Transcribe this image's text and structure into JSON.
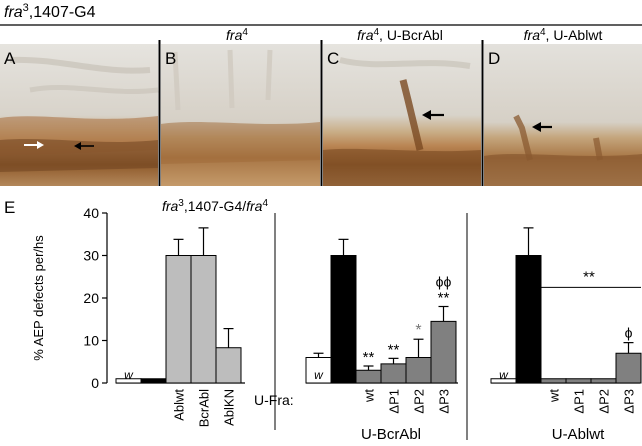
{
  "header": {
    "genotype_base": "fra",
    "genotype_sup": "3",
    "genotype_rest": ",1407-G4"
  },
  "panels": [
    {
      "letter": "A",
      "title_base": "",
      "title_sup": "",
      "title_rest": ""
    },
    {
      "letter": "B",
      "title_base": "fra",
      "title_sup": "4",
      "title_rest": ""
    },
    {
      "letter": "C",
      "title_base": "fra",
      "title_sup": "4",
      "title_rest": ", U-BcrAbl"
    },
    {
      "letter": "D",
      "title_base": "fra",
      "title_sup": "4",
      "title_rest": ", U-Ablwt"
    }
  ],
  "chart_data": {
    "type": "bar",
    "panel_letter": "E",
    "title_base1": "fra",
    "title_sup1": "3",
    "title_mid": ",1407-G4/",
    "title_base2": "fra",
    "title_sup2": "4",
    "ylabel": "% AEP defects per/hs",
    "ylim": [
      0,
      40
    ],
    "yticks": [
      "0",
      "10",
      "20",
      "30",
      "40"
    ],
    "row_label": "U-Fra:",
    "colors": {
      "white": "#ffffff",
      "black": "#000000",
      "gray": "#bdbdbd",
      "dark_gray": "#808080"
    },
    "groups": [
      {
        "name": "",
        "bars": [
          {
            "label": "",
            "inside": "w",
            "value": 1,
            "error": 0,
            "color": "white"
          },
          {
            "label": "",
            "value": 1,
            "error": 0,
            "color": "black"
          },
          {
            "label": "Ablwt",
            "value": 30,
            "error": 3.8,
            "color": "gray"
          },
          {
            "label": "BcrAbl",
            "value": 30,
            "error": 6.5,
            "color": "gray"
          },
          {
            "label": "AblKN",
            "value": 8.3,
            "error": 4.5,
            "color": "gray"
          }
        ]
      },
      {
        "name": "U-BcrAbl",
        "bars": [
          {
            "label": "",
            "inside": "w",
            "value": 6,
            "error": 1,
            "color": "white"
          },
          {
            "label": "",
            "value": 30,
            "error": 3.8,
            "color": "black"
          },
          {
            "label": "wt",
            "value": 3,
            "error": 1,
            "color": "dark_gray",
            "sig": "**"
          },
          {
            "label": "ΔP1",
            "value": 4.5,
            "error": 1.3,
            "color": "dark_gray",
            "sig": "**"
          },
          {
            "label": "ΔP2",
            "value": 6,
            "error": 4.3,
            "color": "dark_gray",
            "sig": "*"
          },
          {
            "label": "ΔP3",
            "value": 14.5,
            "error": 3.5,
            "color": "dark_gray",
            "sig": "**",
            "sig2": "ϕϕ"
          }
        ]
      },
      {
        "name": "U-Ablwt",
        "bars": [
          {
            "label": "",
            "inside": "w",
            "value": 1,
            "error": 0,
            "color": "white"
          },
          {
            "label": "",
            "value": 30,
            "error": 6.5,
            "color": "black"
          },
          {
            "label": "wt",
            "value": 1,
            "error": 0,
            "color": "dark_gray"
          },
          {
            "label": "ΔP1",
            "value": 1,
            "error": 0,
            "color": "dark_gray"
          },
          {
            "label": "ΔP2",
            "value": 1,
            "error": 0,
            "color": "dark_gray"
          },
          {
            "label": "ΔP3",
            "value": 7,
            "error": 2.5,
            "color": "dark_gray",
            "sig2": "ϕ"
          }
        ],
        "bracket_sig": "**"
      }
    ]
  }
}
